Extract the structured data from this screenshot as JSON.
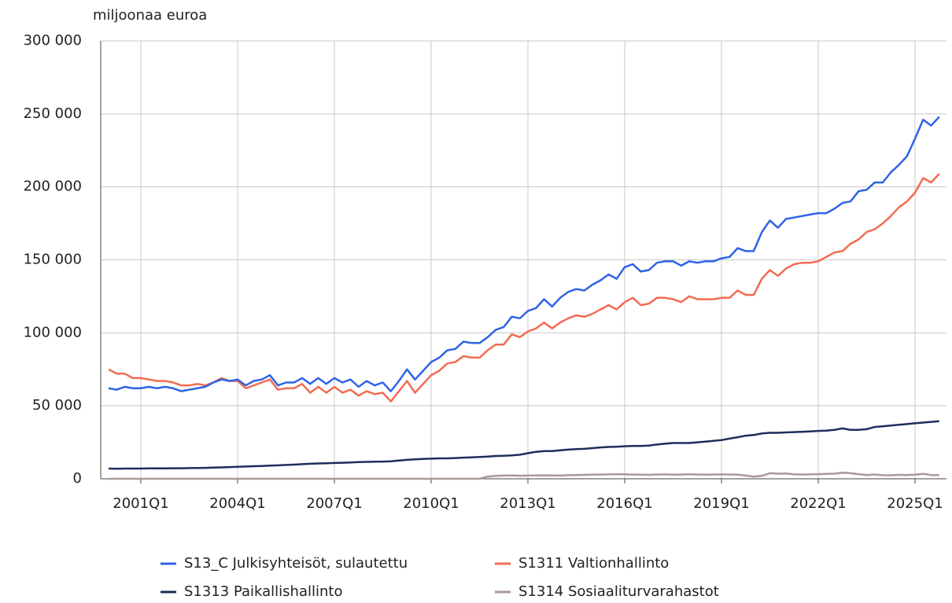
{
  "chart_data": {
    "type": "line",
    "y_axis_label": "miljoonaa euroa",
    "categories": [
      null,
      null,
      null,
      null,
      "2001Q1",
      null,
      null,
      null,
      null,
      null,
      null,
      null,
      null,
      null,
      null,
      null,
      "2004Q1",
      null,
      null,
      null,
      null,
      null,
      null,
      null,
      null,
      null,
      null,
      null,
      "2007Q1",
      null,
      null,
      null,
      null,
      null,
      null,
      null,
      null,
      null,
      null,
      null,
      "2010Q1",
      null,
      null,
      null,
      null,
      null,
      null,
      null,
      null,
      null,
      null,
      null,
      "2013Q1",
      null,
      null,
      null,
      null,
      null,
      null,
      null,
      null,
      null,
      null,
      null,
      "2016Q1",
      null,
      null,
      null,
      null,
      null,
      null,
      null,
      null,
      null,
      null,
      null,
      "2019Q1",
      null,
      null,
      null,
      null,
      null,
      null,
      null,
      null,
      null,
      null,
      null,
      "2022Q1",
      null,
      null,
      null,
      null,
      null,
      null,
      null,
      null,
      null,
      null,
      null,
      "2025Q1",
      null,
      null,
      null
    ],
    "ylim": [
      0,
      300000
    ],
    "yticks": [
      0,
      {
        "value": 50000,
        "label": "50 000"
      },
      {
        "value": 100000,
        "label": "100 000"
      },
      {
        "value": 150000,
        "label": "150 000"
      },
      {
        "value": 200000,
        "label": "200 000"
      },
      {
        "value": 250000,
        "label": "250 000"
      },
      {
        "value": 300000,
        "label": "300 000"
      }
    ],
    "grid": true,
    "series": [
      {
        "name": "S13_C Julkisyhteisöt, sulautettu",
        "color": "#2f63e6",
        "values": [
          62000,
          61000,
          63000,
          62000,
          62000,
          63000,
          62000,
          63000,
          62000,
          60000,
          61000,
          62000,
          63000,
          66000,
          68000,
          67000,
          68000,
          64000,
          67000,
          68000,
          71000,
          64000,
          66000,
          66000,
          69000,
          65000,
          69000,
          65000,
          69000,
          66000,
          68000,
          63000,
          67000,
          64000,
          66000,
          60000,
          67000,
          75000,
          68000,
          74000,
          80000,
          83000,
          88000,
          89000,
          94000,
          93000,
          93000,
          97000,
          102000,
          104000,
          111000,
          110000,
          115000,
          117000,
          123000,
          118000,
          124000,
          128000,
          130000,
          129000,
          133000,
          136000,
          140000,
          137000,
          145000,
          147000,
          142000,
          143000,
          148000,
          149000,
          149000,
          146000,
          149000,
          148000,
          149000,
          149000,
          151000,
          152000,
          158000,
          156000,
          156000,
          169000,
          177000,
          172000,
          178000,
          179000,
          180000,
          181000,
          182000,
          182000,
          185000,
          189000,
          190000,
          197000,
          198000,
          203000,
          203000,
          210000,
          215000,
          221000,
          233000,
          246000,
          242000,
          248000
        ]
      },
      {
        "name": "S1311 Valtionhallinto",
        "color": "#f26b52",
        "values": [
          75000,
          72000,
          72000,
          69000,
          69000,
          68000,
          67000,
          67000,
          66000,
          64000,
          64000,
          65000,
          64000,
          66000,
          69000,
          67000,
          67000,
          62000,
          64000,
          66000,
          68000,
          61000,
          62000,
          62000,
          65000,
          59000,
          63000,
          59000,
          63000,
          59000,
          61000,
          57000,
          60000,
          58000,
          59000,
          53000,
          60000,
          67000,
          59000,
          65000,
          71000,
          74000,
          79000,
          80000,
          84000,
          83000,
          83000,
          88000,
          92000,
          92000,
          99000,
          97000,
          101000,
          103000,
          107000,
          103000,
          107000,
          110000,
          112000,
          111000,
          113000,
          116000,
          119000,
          116000,
          121000,
          124000,
          119000,
          120000,
          124000,
          124000,
          123000,
          121000,
          125000,
          123000,
          123000,
          123000,
          124000,
          124000,
          129000,
          126000,
          126000,
          137000,
          143000,
          139000,
          144000,
          147000,
          148000,
          148000,
          149000,
          152000,
          155000,
          156000,
          161000,
          164000,
          169000,
          171000,
          175000,
          180000,
          186000,
          190000,
          196000,
          206000,
          203000,
          209000
        ]
      },
      {
        "name": "S1313 Paikallishallinto",
        "color": "#1f2d5c",
        "values": [
          7000,
          6900,
          7000,
          7000,
          7000,
          7100,
          7100,
          7100,
          7200,
          7200,
          7300,
          7400,
          7500,
          7700,
          7800,
          8000,
          8200,
          8400,
          8600,
          8800,
          9000,
          9200,
          9500,
          9700,
          10000,
          10300,
          10500,
          10600,
          10800,
          11000,
          11200,
          11400,
          11600,
          11700,
          11800,
          12000,
          12500,
          13000,
          13300,
          13600,
          13800,
          14000,
          14000,
          14200,
          14500,
          14700,
          14900,
          15200,
          15600,
          15800,
          16000,
          16500,
          17500,
          18500,
          19000,
          19000,
          19500,
          20000,
          20300,
          20500,
          21000,
          21500,
          21800,
          22000,
          22300,
          22500,
          22500,
          22800,
          23500,
          24000,
          24500,
          24500,
          24500,
          25000,
          25500,
          26000,
          26500,
          27500,
          28500,
          29500,
          30000,
          31000,
          31500,
          31500,
          31800,
          32000,
          32200,
          32500,
          32800,
          33000,
          33500,
          34500,
          33500,
          33500,
          34000,
          35500,
          36000,
          36500,
          37000,
          37500,
          38000,
          38500,
          39000,
          39500
        ]
      },
      {
        "name": "S1314 Sosiaaliturvarahastot",
        "color": "#a89a96",
        "values": [
          0,
          0,
          0,
          0,
          0,
          0,
          0,
          0,
          0,
          0,
          0,
          0,
          0,
          0,
          0,
          0,
          0,
          0,
          0,
          0,
          0,
          0,
          0,
          0,
          0,
          0,
          0,
          0,
          0,
          0,
          0,
          0,
          0,
          0,
          0,
          0,
          0,
          0,
          0,
          0,
          0,
          0,
          0,
          0,
          0,
          0,
          0,
          1500,
          2000,
          2200,
          2300,
          2100,
          2200,
          2300,
          2400,
          2300,
          2200,
          2500,
          2600,
          2700,
          2800,
          2900,
          3000,
          3200,
          3000,
          2900,
          2800,
          2700,
          2900,
          3000,
          2800,
          2900,
          3100,
          2900,
          2800,
          2900,
          3000,
          2900,
          2800,
          2200,
          1500,
          2000,
          3800,
          3500,
          3600,
          3000,
          2900,
          3000,
          3200,
          3400,
          3500,
          4200,
          3800,
          3200,
          2600,
          2900,
          2500,
          2400,
          2700,
          2600,
          2800,
          3400,
          2600,
          2500
        ]
      }
    ]
  }
}
